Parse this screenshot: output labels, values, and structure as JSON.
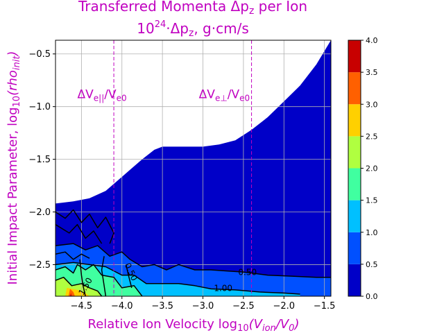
{
  "chart_data": {
    "type": "heatmap",
    "title_line1": "Transferred Momenta Δp",
    "title_line1_sub": "z",
    "title_line1_tail": " per Ion",
    "title_line2_base": "10",
    "title_line2_exp": "24",
    "title_line2_tail": "·Δp",
    "title_line2_sub": "z",
    "title_line2_unit": ", g·cm/s",
    "xlabel": "Relative Ion Velocity  log",
    "xlabel_sub": "10",
    "xlabel_arg": "(V",
    "xlabel_arg_sub": "ion",
    "xlabel_arg_tail": "/V",
    "xlabel_arg_sub2": "0",
    "xlabel_close": ")",
    "ylabel": "Initial Impact Parameter, log",
    "ylabel_sub": "10",
    "ylabel_arg": "(rho",
    "ylabel_arg_sub": "init",
    "ylabel_close": ")",
    "xlim": [
      -4.82,
      -1.42
    ],
    "ylim": [
      -2.8,
      -0.37
    ],
    "xticks": [
      -4.5,
      -4.0,
      -3.5,
      -3.0,
      -2.5,
      -2.0,
      -1.5
    ],
    "xtick_labels": [
      "−4.5",
      "−4.0",
      "−3.5",
      "−3.0",
      "−2.5",
      "−2.0",
      "−1.5"
    ],
    "yticks": [
      -0.5,
      -1.0,
      -1.5,
      -2.0,
      -2.5
    ],
    "ytick_labels": [
      "−0.5",
      "−1.0",
      "−1.5",
      "−2.0",
      "−2.5"
    ],
    "grid": true,
    "colorbar": {
      "levels": [
        0.0,
        0.5,
        1.0,
        1.5,
        2.0,
        2.5,
        3.0,
        3.5,
        4.0
      ],
      "labels": [
        "0.0",
        "0.5",
        "1.0",
        "1.5",
        "2.0",
        "2.5",
        "3.0",
        "3.5",
        "4.0"
      ],
      "colors": [
        "#0000c8",
        "#0050ff",
        "#00c0ff",
        "#40ffa0",
        "#b0ff40",
        "#ffd000",
        "#ff6000",
        "#c80000"
      ]
    },
    "upper_boundary": [
      [
        -4.82,
        -1.92
      ],
      [
        -4.6,
        -1.9
      ],
      [
        -4.4,
        -1.87
      ],
      [
        -4.2,
        -1.8
      ],
      [
        -4.05,
        -1.7
      ],
      [
        -3.9,
        -1.6
      ],
      [
        -3.75,
        -1.5
      ],
      [
        -3.6,
        -1.41
      ],
      [
        -3.5,
        -1.38
      ],
      [
        -3.3,
        -1.38
      ],
      [
        -3.0,
        -1.38
      ],
      [
        -2.8,
        -1.36
      ],
      [
        -2.6,
        -1.32
      ],
      [
        -2.4,
        -1.22
      ],
      [
        -2.2,
        -1.1
      ],
      [
        -2.0,
        -0.95
      ],
      [
        -1.8,
        -0.8
      ],
      [
        -1.6,
        -0.6
      ],
      [
        -1.42,
        -0.37
      ]
    ],
    "vertical_lines": [
      {
        "x": -4.1,
        "label_a": "ΔV",
        "label_sub": "e||",
        "label_b": "/V",
        "label_sub2": "e0",
        "label_x": -4.55,
        "label_y": -0.92
      },
      {
        "x": -2.4,
        "label_a": "ΔV",
        "label_sub": "e⊥",
        "label_b": "/V",
        "label_sub2": "e0",
        "label_x": -3.05,
        "label_y": -0.92
      }
    ],
    "contour_labels": [
      {
        "text": "0.50",
        "x": -2.45,
        "y": -2.6
      },
      {
        "text": "1.00",
        "x": -2.75,
        "y": -2.75
      },
      {
        "text": "0.50",
        "x": -3.92,
        "y": -2.58,
        "rotate": 65
      },
      {
        "text": "1.50",
        "x": -4.42,
        "y": -2.72,
        "rotate": -60
      }
    ],
    "color_regions": [
      {
        "level": 1,
        "points": [
          [
            -4.82,
            -2.8
          ],
          [
            -4.82,
            -2.32
          ],
          [
            -4.6,
            -2.3
          ],
          [
            -4.45,
            -2.36
          ],
          [
            -4.3,
            -2.32
          ],
          [
            -4.15,
            -2.42
          ],
          [
            -4.0,
            -2.38
          ],
          [
            -3.9,
            -2.45
          ],
          [
            -3.75,
            -2.52
          ],
          [
            -3.6,
            -2.5
          ],
          [
            -3.45,
            -2.55
          ],
          [
            -3.3,
            -2.5
          ],
          [
            -3.1,
            -2.55
          ],
          [
            -2.9,
            -2.55
          ],
          [
            -2.7,
            -2.56
          ],
          [
            -2.5,
            -2.57
          ],
          [
            -2.2,
            -2.6
          ],
          [
            -1.9,
            -2.61
          ],
          [
            -1.6,
            -2.62
          ],
          [
            -1.42,
            -2.62
          ],
          [
            -1.42,
            -2.8
          ]
        ]
      },
      {
        "level": 2,
        "points": [
          [
            -4.82,
            -2.8
          ],
          [
            -4.82,
            -2.5
          ],
          [
            -4.6,
            -2.48
          ],
          [
            -4.4,
            -2.5
          ],
          [
            -4.2,
            -2.52
          ],
          [
            -4.0,
            -2.6
          ],
          [
            -3.85,
            -2.6
          ],
          [
            -3.7,
            -2.68
          ],
          [
            -3.5,
            -2.68
          ],
          [
            -3.3,
            -2.68
          ],
          [
            -3.1,
            -2.7
          ],
          [
            -2.9,
            -2.73
          ],
          [
            -2.6,
            -2.74
          ],
          [
            -2.3,
            -2.76
          ],
          [
            -2.0,
            -2.77
          ],
          [
            -1.8,
            -2.78
          ],
          [
            -1.8,
            -2.8
          ]
        ]
      },
      {
        "level": 3,
        "points": [
          [
            -4.82,
            -2.8
          ],
          [
            -4.82,
            -2.55
          ],
          [
            -4.7,
            -2.52
          ],
          [
            -4.6,
            -2.58
          ],
          [
            -4.55,
            -2.5
          ],
          [
            -4.45,
            -2.55
          ],
          [
            -4.35,
            -2.5
          ],
          [
            -4.25,
            -2.6
          ],
          [
            -4.1,
            -2.62
          ],
          [
            -4.0,
            -2.72
          ],
          [
            -3.85,
            -2.7
          ],
          [
            -3.75,
            -2.8
          ]
        ]
      },
      {
        "level": 4,
        "points": [
          [
            -4.82,
            -2.8
          ],
          [
            -4.82,
            -2.65
          ],
          [
            -4.72,
            -2.62
          ],
          [
            -4.62,
            -2.7
          ],
          [
            -4.5,
            -2.68
          ],
          [
            -4.4,
            -2.72
          ],
          [
            -4.3,
            -2.75
          ],
          [
            -4.25,
            -2.8
          ]
        ]
      },
      {
        "level": 5,
        "points": [
          [
            -4.7,
            -2.8
          ],
          [
            -4.68,
            -2.72
          ],
          [
            -4.55,
            -2.74
          ],
          [
            -4.45,
            -2.77
          ],
          [
            -4.4,
            -2.8
          ]
        ]
      },
      {
        "level": 6,
        "points": [
          [
            -4.66,
            -2.8
          ],
          [
            -4.64,
            -2.73
          ],
          [
            -4.6,
            -2.76
          ],
          [
            -4.58,
            -2.8
          ]
        ]
      },
      {
        "level": 7,
        "points": [
          [
            -4.64,
            -2.8
          ],
          [
            -4.63,
            -2.77
          ],
          [
            -4.62,
            -2.8
          ]
        ]
      }
    ],
    "contour_lines": [
      [
        [
          -1.42,
          -2.62
        ],
        [
          -1.6,
          -2.62
        ],
        [
          -1.9,
          -2.61
        ],
        [
          -2.2,
          -2.6
        ],
        [
          -2.5,
          -2.57
        ],
        [
          -2.7,
          -2.56
        ],
        [
          -2.9,
          -2.55
        ],
        [
          -3.1,
          -2.55
        ],
        [
          -3.3,
          -2.5
        ],
        [
          -3.45,
          -2.55
        ],
        [
          -3.6,
          -2.5
        ],
        [
          -3.75,
          -2.52
        ],
        [
          -3.9,
          -2.45
        ],
        [
          -4.0,
          -2.38
        ],
        [
          -4.15,
          -2.42
        ],
        [
          -4.3,
          -2.32
        ],
        [
          -4.45,
          -2.36
        ],
        [
          -4.6,
          -2.3
        ],
        [
          -4.82,
          -2.32
        ]
      ],
      [
        [
          -1.8,
          -2.78
        ],
        [
          -2.0,
          -2.77
        ],
        [
          -2.3,
          -2.76
        ],
        [
          -2.6,
          -2.74
        ],
        [
          -2.9,
          -2.73
        ],
        [
          -3.1,
          -2.7
        ],
        [
          -3.3,
          -2.68
        ],
        [
          -3.5,
          -2.68
        ],
        [
          -3.7,
          -2.68
        ],
        [
          -3.85,
          -2.6
        ],
        [
          -4.0,
          -2.6
        ],
        [
          -4.2,
          -2.52
        ],
        [
          -4.4,
          -2.5
        ],
        [
          -4.6,
          -2.48
        ],
        [
          -4.82,
          -2.5
        ]
      ],
      [
        [
          -3.75,
          -2.8
        ],
        [
          -3.85,
          -2.7
        ],
        [
          -4.0,
          -2.72
        ],
        [
          -4.1,
          -2.62
        ],
        [
          -4.25,
          -2.6
        ],
        [
          -4.35,
          -2.5
        ],
        [
          -4.45,
          -2.55
        ],
        [
          -4.55,
          -2.5
        ],
        [
          -4.6,
          -2.58
        ],
        [
          -4.7,
          -2.52
        ],
        [
          -4.82,
          -2.55
        ]
      ],
      [
        [
          -4.25,
          -2.8
        ],
        [
          -4.3,
          -2.75
        ],
        [
          -4.4,
          -2.72
        ],
        [
          -4.5,
          -2.68
        ],
        [
          -4.62,
          -2.7
        ],
        [
          -4.72,
          -2.62
        ],
        [
          -4.82,
          -2.65
        ]
      ],
      [
        [
          -4.82,
          -2.0
        ],
        [
          -4.7,
          -2.06
        ],
        [
          -4.6,
          -1.98
        ],
        [
          -4.5,
          -2.1
        ],
        [
          -4.4,
          -2.02
        ],
        [
          -4.3,
          -2.15
        ],
        [
          -4.2,
          -2.05
        ],
        [
          -4.1,
          -2.2
        ],
        [
          -4.15,
          -2.3
        ]
      ],
      [
        [
          -4.82,
          -2.12
        ],
        [
          -4.65,
          -2.2
        ],
        [
          -4.55,
          -2.12
        ],
        [
          -4.45,
          -2.25
        ],
        [
          -4.35,
          -2.18
        ],
        [
          -4.25,
          -2.3
        ]
      ],
      [
        [
          -4.82,
          -2.4
        ],
        [
          -4.7,
          -2.38
        ],
        [
          -4.6,
          -2.45
        ],
        [
          -4.5,
          -2.4
        ],
        [
          -4.4,
          -2.44
        ]
      ],
      [
        [
          -4.45,
          -2.8
        ],
        [
          -4.48,
          -2.7
        ],
        [
          -4.5,
          -2.6
        ],
        [
          -4.52,
          -2.45
        ]
      ],
      [
        [
          -4.2,
          -2.8
        ],
        [
          -4.22,
          -2.7
        ],
        [
          -4.25,
          -2.55
        ],
        [
          -4.22,
          -2.42
        ]
      ],
      [
        [
          -3.95,
          -2.5
        ],
        [
          -3.92,
          -2.6
        ],
        [
          -3.88,
          -2.72
        ]
      ]
    ]
  }
}
